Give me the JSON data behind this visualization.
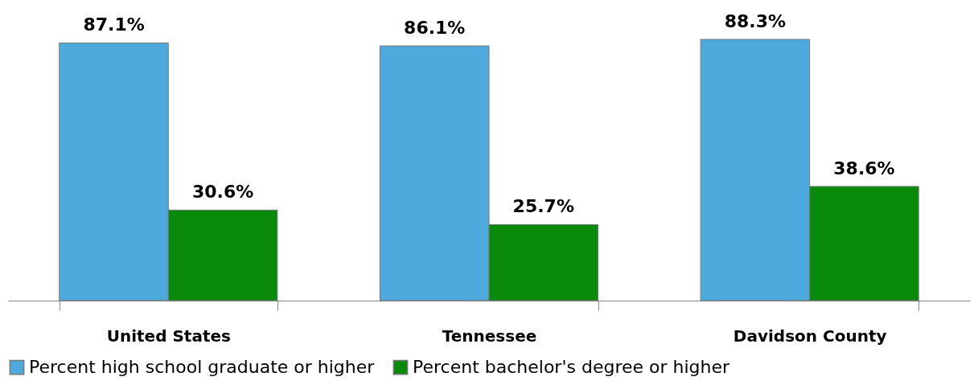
{
  "chart_data": {
    "type": "bar",
    "categories": [
      "United States",
      "Tennessee",
      "Davidson County"
    ],
    "series": [
      {
        "name": "Percent high school graduate or higher",
        "color": "#4eaadc",
        "values": [
          87.1,
          86.1,
          88.3
        ],
        "value_labels": [
          "87.1%",
          "86.1%",
          "88.3%"
        ]
      },
      {
        "name": "Percent bachelor's degree or higher",
        "color": "#0a8a0a",
        "values": [
          30.6,
          25.7,
          38.6
        ],
        "value_labels": [
          "30.6%",
          "25.7%",
          "38.6%"
        ]
      }
    ],
    "legend": "bottom",
    "grid": false
  }
}
